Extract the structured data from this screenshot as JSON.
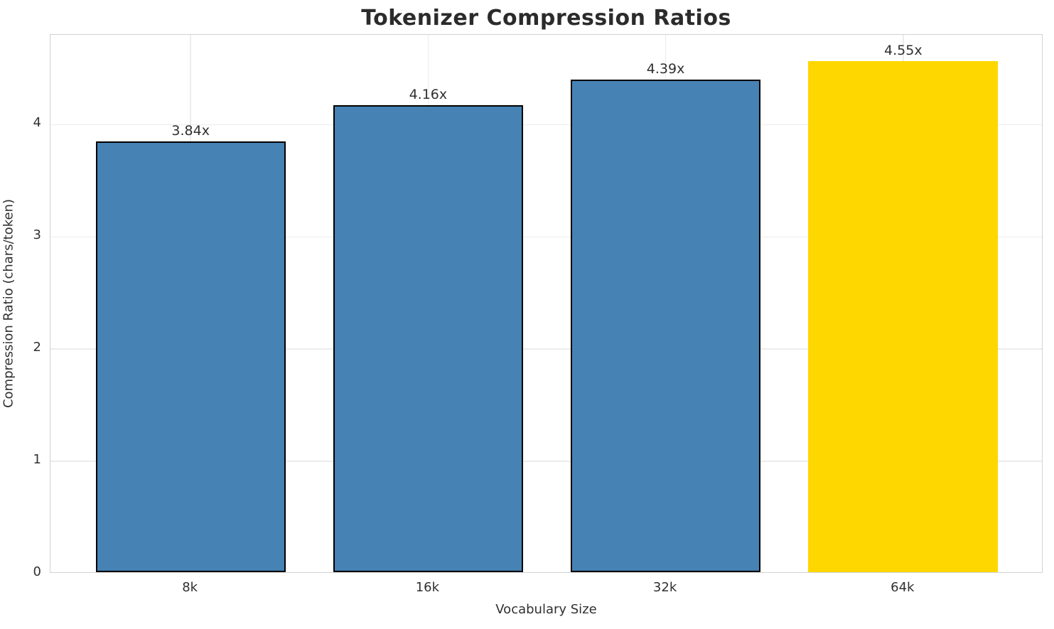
{
  "title": "Tokenizer Compression Ratios",
  "colors": {
    "bar_fill": "#4682B4",
    "highlight_fill": "#FFD700",
    "bar_edge": "#000000",
    "grid": "#ececec",
    "spine": "#d2d2d2",
    "text": "#303030",
    "title_text": "#2b2b2b",
    "background": "#ffffff"
  },
  "chart_data": {
    "type": "bar",
    "title": "Tokenizer Compression Ratios",
    "xlabel": "Vocabulary Size",
    "ylabel": "Compression Ratio (chars/token)",
    "categories": [
      "8k",
      "16k",
      "32k",
      "64k"
    ],
    "values": [
      3.84,
      4.16,
      4.39,
      4.55
    ],
    "bar_labels": [
      "3.84x",
      "4.16x",
      "4.39x",
      "4.55x"
    ],
    "bar_colors": [
      "#4682B4",
      "#4682B4",
      "#4682B4",
      "#FFD700"
    ],
    "bar_edge_colors": [
      "#000000",
      "#000000",
      "#000000",
      "none"
    ],
    "yticks": [
      0,
      1,
      2,
      3,
      4
    ],
    "ylim": [
      0,
      4.8
    ],
    "grid": "both",
    "legend": "none",
    "highlighted_category": "64k"
  }
}
